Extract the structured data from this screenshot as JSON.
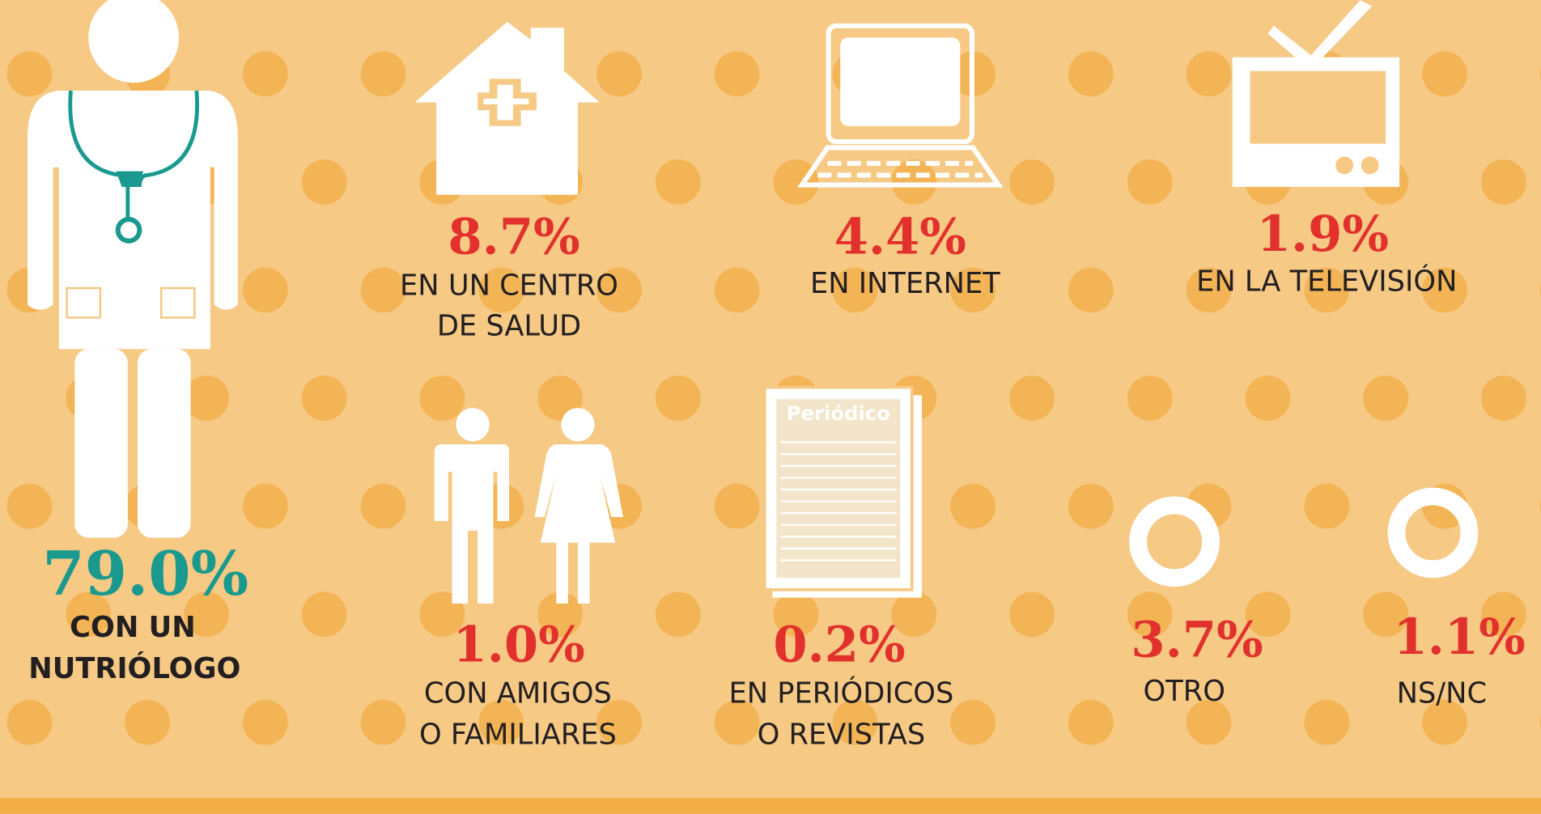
{
  "items": [
    {
      "value": "79.0%",
      "lines": [
        "CON UN",
        "NUTRIÓLOGO"
      ]
    },
    {
      "value": "8.7%",
      "lines": [
        "EN UN CENTRO",
        "DE SALUD"
      ]
    },
    {
      "value": "4.4%",
      "lines": [
        "EN INTERNET"
      ]
    },
    {
      "value": "1.9%",
      "lines": [
        "EN LA TELEVISIÓN"
      ]
    },
    {
      "value": "1.0%",
      "lines": [
        "CON AMIGOS",
        "O FAMILIARES"
      ]
    },
    {
      "value": "0.2%",
      "lines": [
        "EN PERIÓDICOS",
        "O REVISTAS"
      ]
    },
    {
      "value": "3.7%",
      "lines": [
        "OTRO"
      ]
    },
    {
      "value": "1.1%",
      "lines": [
        "NS/NC"
      ]
    }
  ],
  "newspaper_title": "Periódico"
}
